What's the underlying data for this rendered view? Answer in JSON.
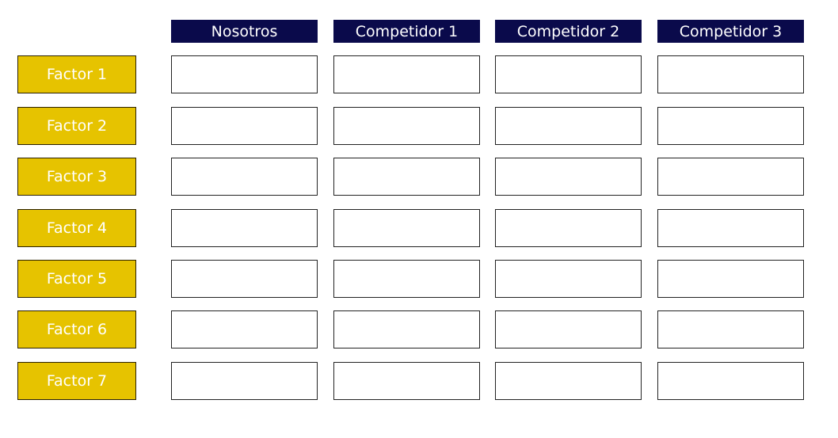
{
  "columns": [
    "Nosotros",
    "Competidor 1",
    "Competidor 2",
    "Competidor 3"
  ],
  "factors": [
    "Factor 1",
    "Factor 2",
    "Factor 3",
    "Factor 4",
    "Factor 5",
    "Factor 6",
    "Factor 7"
  ],
  "colors": {
    "header_bg": "#0a0a4b",
    "factor_bg": "#e6c300",
    "text": "#ffffff"
  }
}
